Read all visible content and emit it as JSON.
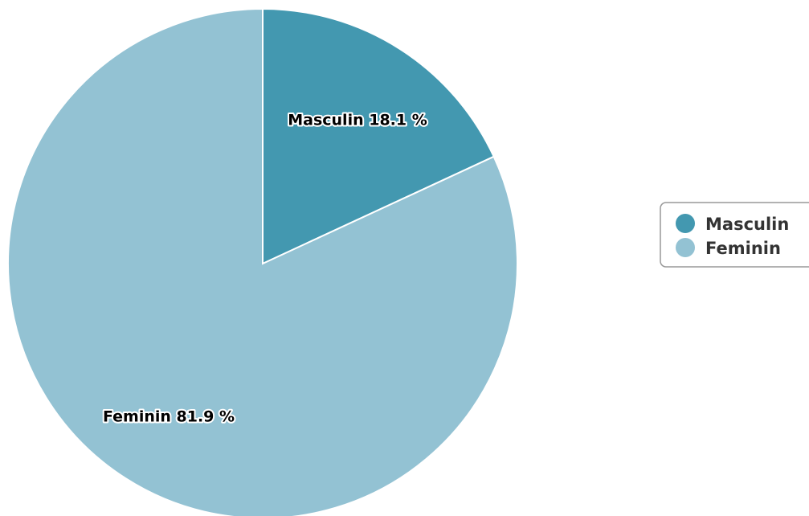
{
  "chart_data": {
    "type": "pie",
    "slices": [
      {
        "label": "Masculin",
        "value": 18.1,
        "color": "#4398b0",
        "data_label": "Masculin 18.1 %"
      },
      {
        "label": "Feminin",
        "value": 81.9,
        "color": "#93c2d3",
        "data_label": "Feminin 81.9 %"
      }
    ],
    "unit": "%",
    "start_angle": "12 o'clock",
    "direction": "clockwise",
    "legend": {
      "placement": "right",
      "entries": [
        "Masculin",
        "Feminin"
      ]
    }
  }
}
